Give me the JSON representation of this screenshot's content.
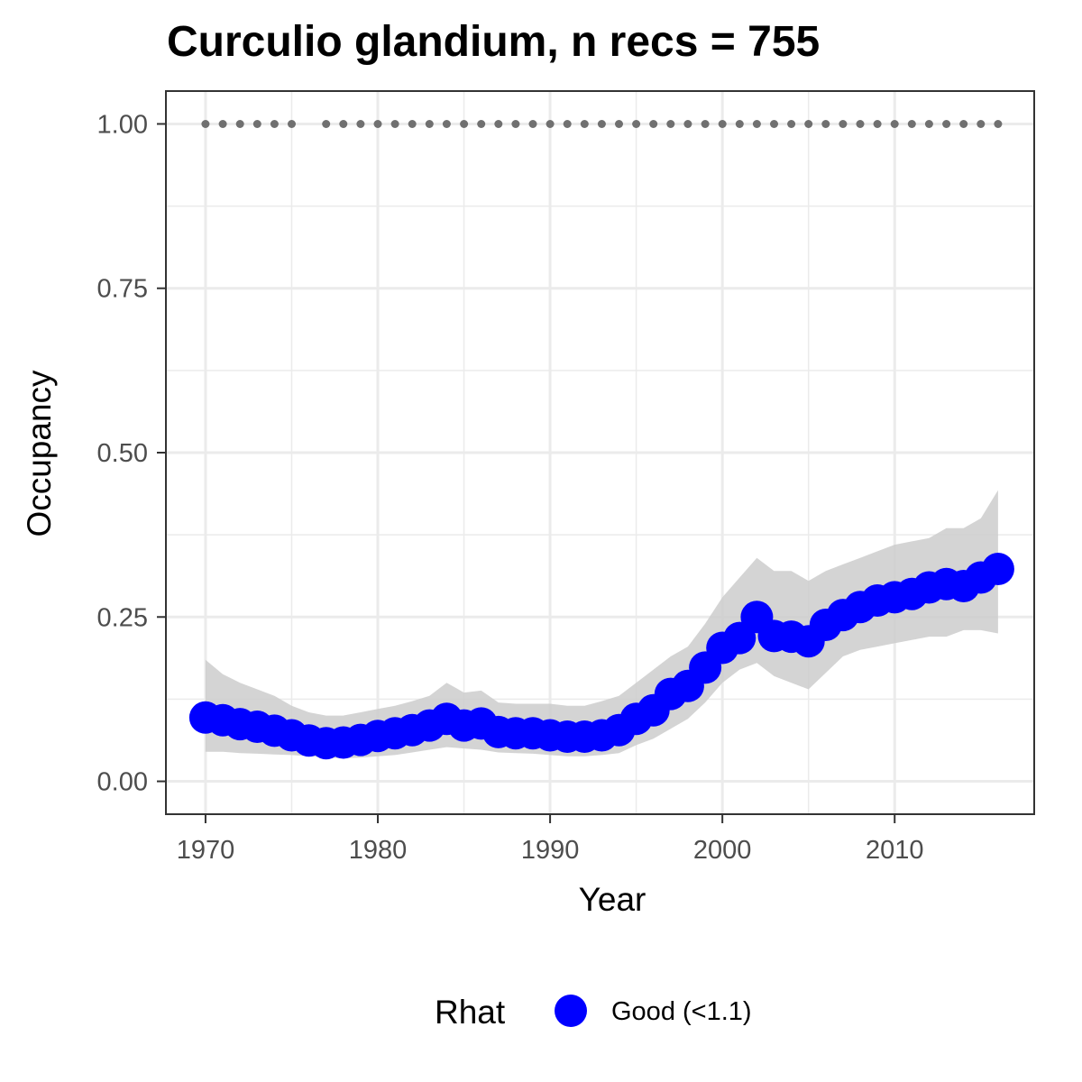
{
  "chart_data": {
    "type": "line",
    "title": "Curculio glandium, n recs = 755",
    "xlabel": "Year",
    "ylabel": "Occupancy",
    "xlim": [
      1967.7,
      2018.1
    ],
    "ylim": [
      -0.05,
      1.05
    ],
    "x_ticks": [
      1970,
      1980,
      1990,
      2000,
      2010
    ],
    "y_ticks": [
      0.0,
      0.25,
      0.5,
      0.75,
      1.0
    ],
    "x_tick_labels": [
      "1970",
      "1980",
      "1990",
      "2000",
      "2010"
    ],
    "y_tick_labels": [
      "0.00",
      "0.25",
      "0.50",
      "0.75",
      "1.00"
    ],
    "grid": true,
    "legend_position": "bottom",
    "legend_title": "Rhat",
    "colors": {
      "series": "#0000ff",
      "ribbon": "#cccccc",
      "record_dots": "#707070",
      "grid": "#ebebeb",
      "panel_border": "#333333"
    },
    "series": [
      {
        "name": "Good (<1.1)",
        "x": [
          1970,
          1971,
          1972,
          1973,
          1974,
          1975,
          1976,
          1977,
          1978,
          1979,
          1980,
          1981,
          1982,
          1983,
          1984,
          1985,
          1986,
          1987,
          1988,
          1989,
          1990,
          1991,
          1992,
          1993,
          1994,
          1995,
          1996,
          1997,
          1998,
          1999,
          2000,
          2001,
          2002,
          2003,
          2004,
          2005,
          2006,
          2007,
          2008,
          2009,
          2010,
          2011,
          2012,
          2013,
          2014,
          2015,
          2016
        ],
        "y": [
          0.097,
          0.093,
          0.087,
          0.083,
          0.077,
          0.07,
          0.062,
          0.058,
          0.059,
          0.063,
          0.069,
          0.073,
          0.078,
          0.085,
          0.095,
          0.085,
          0.088,
          0.075,
          0.073,
          0.073,
          0.07,
          0.068,
          0.068,
          0.07,
          0.078,
          0.095,
          0.108,
          0.133,
          0.145,
          0.173,
          0.203,
          0.218,
          0.25,
          0.221,
          0.22,
          0.213,
          0.238,
          0.253,
          0.265,
          0.275,
          0.28,
          0.285,
          0.295,
          0.3,
          0.297,
          0.31,
          0.323
        ]
      }
    ],
    "credible_interval": {
      "lower": [
        0.045,
        0.045,
        0.043,
        0.042,
        0.041,
        0.04,
        0.038,
        0.036,
        0.035,
        0.036,
        0.038,
        0.04,
        0.044,
        0.048,
        0.052,
        0.05,
        0.048,
        0.044,
        0.043,
        0.042,
        0.04,
        0.038,
        0.038,
        0.04,
        0.043,
        0.055,
        0.065,
        0.08,
        0.095,
        0.12,
        0.15,
        0.17,
        0.18,
        0.16,
        0.15,
        0.14,
        0.165,
        0.19,
        0.2,
        0.205,
        0.21,
        0.215,
        0.22,
        0.22,
        0.23,
        0.23,
        0.225
      ],
      "upper": [
        0.185,
        0.163,
        0.15,
        0.14,
        0.13,
        0.115,
        0.105,
        0.1,
        0.1,
        0.105,
        0.11,
        0.115,
        0.122,
        0.13,
        0.15,
        0.135,
        0.138,
        0.12,
        0.118,
        0.118,
        0.118,
        0.115,
        0.115,
        0.122,
        0.13,
        0.15,
        0.17,
        0.19,
        0.205,
        0.24,
        0.28,
        0.31,
        0.34,
        0.32,
        0.32,
        0.305,
        0.32,
        0.33,
        0.34,
        0.35,
        0.36,
        0.365,
        0.37,
        0.385,
        0.385,
        0.4,
        0.443
      ]
    },
    "record_years": [
      1970,
      1971,
      1972,
      1973,
      1974,
      1975,
      1977,
      1978,
      1979,
      1980,
      1981,
      1982,
      1983,
      1984,
      1985,
      1986,
      1987,
      1988,
      1989,
      1990,
      1991,
      1992,
      1993,
      1994,
      1995,
      1996,
      1997,
      1998,
      1999,
      2000,
      2001,
      2002,
      2003,
      2004,
      2005,
      2006,
      2007,
      2008,
      2009,
      2010,
      2011,
      2012,
      2013,
      2014,
      2015,
      2016
    ],
    "record_value": 1.0
  }
}
